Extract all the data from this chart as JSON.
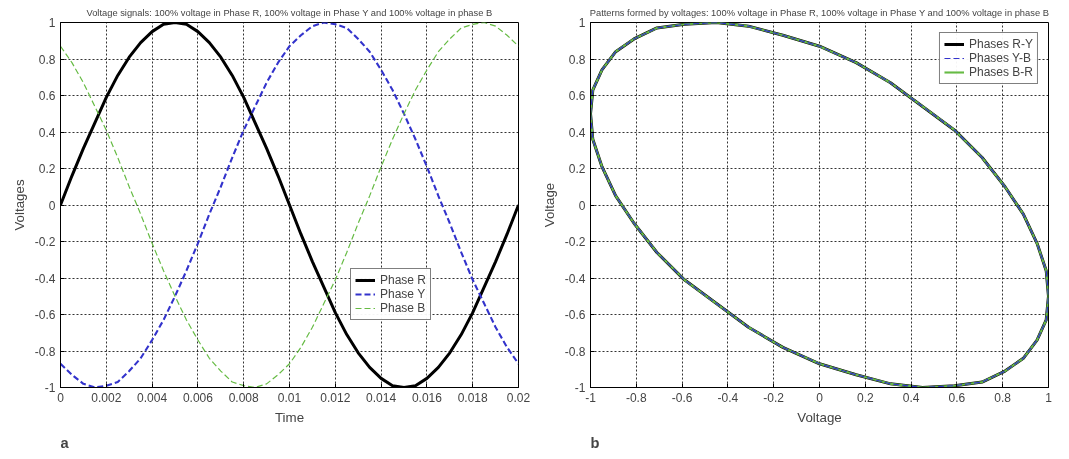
{
  "chart_data": [
    {
      "type": "line",
      "title": "Voltage signals: 100% voltage in Phase R, 100% voltage in Phase Y and 100% voltage in phase B",
      "xlabel": "Time",
      "ylabel": "Voltages",
      "annotations": [
        "a"
      ],
      "x": [
        0,
        0.0005,
        0.001,
        0.0015,
        0.002,
        0.0025,
        0.003,
        0.0035,
        0.004,
        0.0045,
        0.005,
        0.0055,
        0.006,
        0.0065,
        0.007,
        0.0075,
        0.008,
        0.0085,
        0.009,
        0.0095,
        0.01,
        0.0105,
        0.011,
        0.0115,
        0.012,
        0.0125,
        0.013,
        0.0135,
        0.014,
        0.0145,
        0.015,
        0.0155,
        0.016,
        0.0165,
        0.017,
        0.0175,
        0.018,
        0.0185,
        0.019,
        0.0195,
        0.02
      ],
      "series": [
        {
          "name": "Phase R",
          "color": "#000000",
          "line_style": "solid",
          "values": [
            0,
            0.16,
            0.31,
            0.45,
            0.59,
            0.71,
            0.81,
            0.89,
            0.95,
            0.99,
            1,
            0.99,
            0.95,
            0.89,
            0.81,
            0.71,
            0.59,
            0.45,
            0.31,
            0.16,
            0,
            -0.16,
            -0.31,
            -0.45,
            -0.59,
            -0.71,
            -0.81,
            -0.89,
            -0.95,
            -0.99,
            -1,
            -0.99,
            -0.95,
            -0.89,
            -0.81,
            -0.71,
            -0.59,
            -0.45,
            -0.31,
            -0.16,
            0
          ]
        },
        {
          "name": "Phase Y",
          "color": "#3333cc",
          "line_style": "dashed",
          "values": [
            -0.87,
            -0.93,
            -0.98,
            -1,
            -0.99,
            -0.97,
            -0.91,
            -0.84,
            -0.74,
            -0.63,
            -0.5,
            -0.36,
            -0.21,
            -0.05,
            0.1,
            0.26,
            0.41,
            0.54,
            0.67,
            0.78,
            0.87,
            0.93,
            0.98,
            1,
            0.99,
            0.97,
            0.91,
            0.84,
            0.74,
            0.63,
            0.5,
            0.36,
            0.21,
            0.05,
            -0.1,
            -0.26,
            -0.41,
            -0.54,
            -0.67,
            -0.78,
            -0.87
          ]
        },
        {
          "name": "Phase B",
          "color": "#66bb44",
          "line_style": "dashed",
          "values": [
            0.87,
            0.78,
            0.67,
            0.54,
            0.41,
            0.26,
            0.1,
            -0.05,
            -0.21,
            -0.36,
            -0.5,
            -0.63,
            -0.74,
            -0.84,
            -0.91,
            -0.97,
            -0.99,
            -1,
            -0.98,
            -0.93,
            -0.87,
            -0.78,
            -0.67,
            -0.54,
            -0.41,
            -0.26,
            -0.1,
            0.05,
            0.21,
            0.36,
            0.5,
            0.63,
            0.74,
            0.84,
            0.91,
            0.97,
            0.99,
            1,
            0.98,
            0.93,
            0.87
          ]
        }
      ],
      "xlim": [
        0,
        0.02
      ],
      "xticks": [
        0,
        0.002,
        0.004,
        0.006,
        0.008,
        0.01,
        0.012,
        0.014,
        0.016,
        0.018,
        0.02
      ],
      "ylim": [
        -1,
        1
      ],
      "yticks": [
        -1,
        -0.8,
        -0.6,
        -0.4,
        -0.2,
        0,
        0.2,
        0.4,
        0.6,
        0.8,
        1
      ],
      "grid": true,
      "legend": "bottom right",
      "marker": "none"
    },
    {
      "type": "line",
      "title": "Patterns formed by voltages: 100% voltage in Phase R, 100% voltage in Phase Y and 100% voltage in phase B",
      "xlabel": "Voltage",
      "ylabel": "Voltage",
      "annotations": [
        "b"
      ],
      "series": [
        {
          "name": "Phases R-Y",
          "color": "#000000",
          "line_style": "solid",
          "x": [
            -1,
            -0.99,
            -0.95,
            -0.89,
            -0.81,
            -0.71,
            -0.59,
            -0.45,
            -0.31,
            -0.16,
            0,
            0.16,
            0.31,
            0.45,
            0.59,
            0.71,
            0.81,
            0.89,
            0.95,
            0.99,
            1,
            null,
            -1,
            -0.99,
            -0.95,
            -0.89,
            -0.81,
            -0.71,
            -0.59,
            -0.45,
            -0.31,
            -0.16,
            0,
            0.16,
            0.31,
            0.45,
            0.59,
            0.71,
            0.81,
            0.89,
            0.95,
            0.99,
            1
          ],
          "values": [
            0.5,
            0.36,
            0.21,
            0.05,
            -0.1,
            -0.26,
            -0.41,
            -0.54,
            -0.67,
            -0.78,
            -0.87,
            -0.93,
            -0.98,
            -1,
            -0.99,
            -0.97,
            -0.91,
            -0.84,
            -0.74,
            -0.63,
            -0.5,
            null,
            0.5,
            0.63,
            0.74,
            0.84,
            0.91,
            0.97,
            0.99,
            1,
            0.98,
            0.93,
            0.87,
            0.78,
            0.67,
            0.54,
            0.41,
            0.26,
            0.1,
            -0.05,
            -0.21,
            -0.36,
            -0.5
          ]
        },
        {
          "name": "Phases Y-B",
          "color": "#3333cc",
          "line_style": "dashed",
          "x": [
            -1,
            -0.99,
            -0.95,
            -0.89,
            -0.81,
            -0.71,
            -0.59,
            -0.45,
            -0.31,
            -0.16,
            0,
            0.16,
            0.31,
            0.45,
            0.59,
            0.71,
            0.81,
            0.89,
            0.95,
            0.99,
            1,
            null,
            -1,
            -0.99,
            -0.95,
            -0.89,
            -0.81,
            -0.71,
            -0.59,
            -0.45,
            -0.31,
            -0.16,
            0,
            0.16,
            0.31,
            0.45,
            0.59,
            0.71,
            0.81,
            0.89,
            0.95,
            0.99,
            1
          ],
          "values": [
            0.5,
            0.36,
            0.21,
            0.05,
            -0.1,
            -0.26,
            -0.41,
            -0.54,
            -0.67,
            -0.78,
            -0.87,
            -0.93,
            -0.98,
            -1,
            -0.99,
            -0.97,
            -0.91,
            -0.84,
            -0.74,
            -0.63,
            -0.5,
            null,
            0.5,
            0.63,
            0.74,
            0.84,
            0.91,
            0.97,
            0.99,
            1,
            0.98,
            0.93,
            0.87,
            0.78,
            0.67,
            0.54,
            0.41,
            0.26,
            0.1,
            -0.05,
            -0.21,
            -0.36,
            -0.5
          ]
        },
        {
          "name": "Phases B-R",
          "color": "#66bb44",
          "line_style": "solid",
          "x": [
            -1,
            -0.99,
            -0.95,
            -0.89,
            -0.81,
            -0.71,
            -0.59,
            -0.45,
            -0.31,
            -0.16,
            0,
            0.16,
            0.31,
            0.45,
            0.59,
            0.71,
            0.81,
            0.89,
            0.95,
            0.99,
            1,
            null,
            -1,
            -0.99,
            -0.95,
            -0.89,
            -0.81,
            -0.71,
            -0.59,
            -0.45,
            -0.31,
            -0.16,
            0,
            0.16,
            0.31,
            0.45,
            0.59,
            0.71,
            0.81,
            0.89,
            0.95,
            0.99,
            1
          ],
          "values": [
            0.5,
            0.36,
            0.21,
            0.05,
            -0.1,
            -0.26,
            -0.41,
            -0.54,
            -0.67,
            -0.78,
            -0.87,
            -0.93,
            -0.98,
            -1,
            -0.99,
            -0.97,
            -0.91,
            -0.84,
            -0.74,
            -0.63,
            -0.5,
            null,
            0.5,
            0.63,
            0.74,
            0.84,
            0.91,
            0.97,
            0.99,
            1,
            0.98,
            0.93,
            0.87,
            0.78,
            0.67,
            0.54,
            0.41,
            0.26,
            0.1,
            -0.05,
            -0.21,
            -0.36,
            -0.5
          ]
        }
      ],
      "xlim": [
        -1,
        1
      ],
      "xticks": [
        -1,
        -0.8,
        -0.6,
        -0.4,
        -0.2,
        0,
        0.2,
        0.4,
        0.6,
        0.8,
        1
      ],
      "ylim": [
        -1,
        1
      ],
      "yticks": [
        -1,
        -0.8,
        -0.6,
        -0.4,
        -0.2,
        0,
        0.2,
        0.4,
        0.6,
        0.8,
        1
      ],
      "grid": true,
      "legend": "top right",
      "marker": "none"
    }
  ]
}
